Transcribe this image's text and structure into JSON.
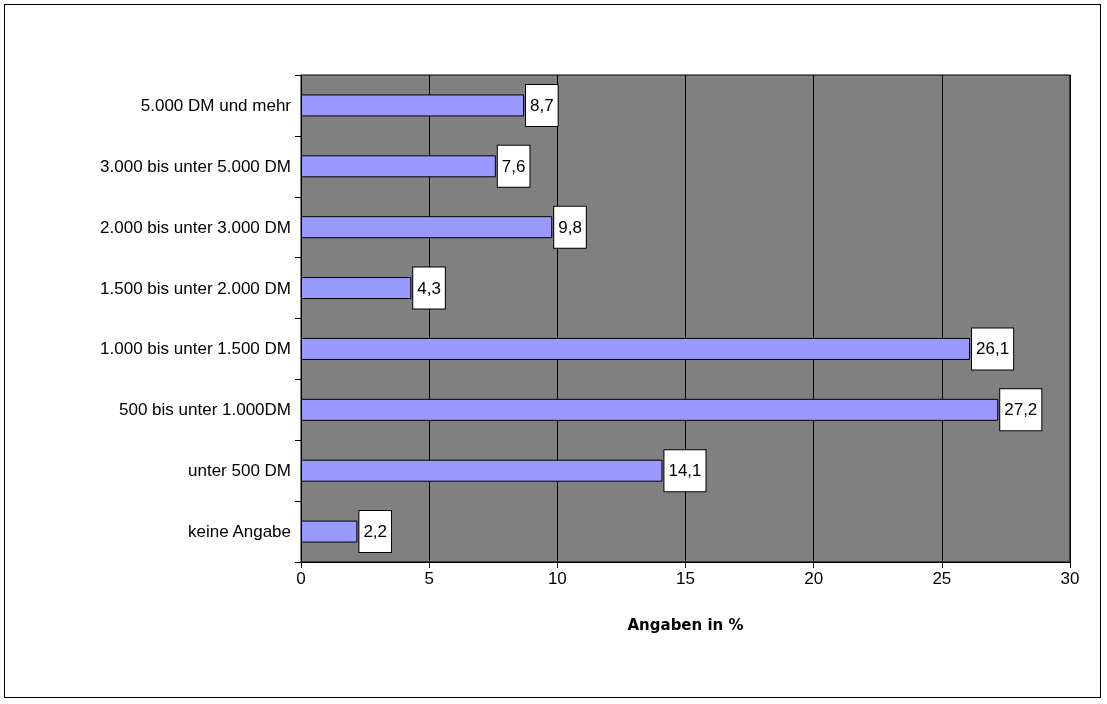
{
  "chart_data": {
    "type": "bar",
    "orientation": "horizontal",
    "xlabel": "Angaben in %",
    "categories": [
      "5.000 DM und mehr",
      "3.000 bis unter 5.000 DM",
      "2.000 bis unter 3.000 DM",
      "1.500 bis unter 2.000 DM",
      "1.000 bis unter 1.500 DM",
      "500 bis unter 1.000DM",
      "unter 500 DM",
      "keine Angabe"
    ],
    "values": [
      8.7,
      7.6,
      9.8,
      4.3,
      26.1,
      27.2,
      14.1,
      2.2
    ],
    "value_labels": [
      "8,7",
      "7,6",
      "9,8",
      "4,3",
      "26,1",
      "27,2",
      "14,1",
      "2,2"
    ],
    "color": "#9999ff",
    "xlim": [
      0,
      30
    ],
    "xticks": [
      0,
      5,
      10,
      15,
      20,
      25,
      30
    ],
    "grid": "x"
  }
}
